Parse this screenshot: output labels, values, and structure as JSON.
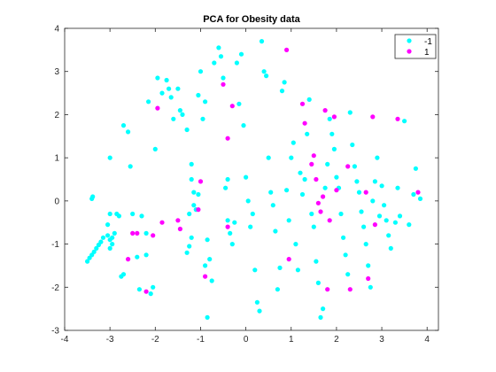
{
  "chart_data": {
    "type": "scatter",
    "title": "PCA for Obesity data",
    "xlabel": "",
    "ylabel": "",
    "xlim": [
      -4,
      4.25
    ],
    "ylim": [
      -3,
      4
    ],
    "xticks": [
      -4,
      -3,
      -2,
      -1,
      0,
      1,
      2,
      3,
      4
    ],
    "yticks": [
      -3,
      -2,
      -1,
      0,
      1,
      2,
      3,
      4
    ],
    "grid": false,
    "legend_position": "top-right",
    "series": [
      {
        "name": "-1",
        "color": "#00FFFF",
        "points": [
          [
            -3.5,
            -1.4
          ],
          [
            -3.45,
            -1.32
          ],
          [
            -3.4,
            -1.25
          ],
          [
            -3.35,
            -1.18
          ],
          [
            -3.3,
            -1.1
          ],
          [
            -3.25,
            -1.02
          ],
          [
            -3.2,
            -0.95
          ],
          [
            -3.15,
            -0.85
          ],
          [
            -3.4,
            0.05
          ],
          [
            -3.38,
            0.1
          ],
          [
            -3.05,
            -0.55
          ],
          [
            -3.0,
            -0.3
          ],
          [
            -3.05,
            -0.8
          ],
          [
            -3.0,
            -0.9
          ],
          [
            -2.95,
            -0.85
          ],
          [
            -2.9,
            -0.75
          ],
          [
            -2.95,
            -1.0
          ],
          [
            -3.0,
            -1.1
          ],
          [
            -2.85,
            -0.3
          ],
          [
            -2.8,
            -0.35
          ],
          [
            -3.0,
            1.0
          ],
          [
            -2.7,
            -1.7
          ],
          [
            -2.75,
            -1.75
          ],
          [
            -2.7,
            1.75
          ],
          [
            -2.6,
            1.6
          ],
          [
            -2.55,
            0.8
          ],
          [
            -2.5,
            -0.3
          ],
          [
            -2.4,
            -1.3
          ],
          [
            -2.35,
            -2.05
          ],
          [
            -2.3,
            -0.35
          ],
          [
            -2.2,
            -0.75
          ],
          [
            -2.2,
            -1.25
          ],
          [
            -2.15,
            2.3
          ],
          [
            -2.1,
            -2.15
          ],
          [
            -2.05,
            -2.0
          ],
          [
            -2.0,
            1.2
          ],
          [
            -1.95,
            2.85
          ],
          [
            -1.85,
            2.5
          ],
          [
            -1.75,
            2.8
          ],
          [
            -1.7,
            2.6
          ],
          [
            -1.65,
            2.4
          ],
          [
            -1.6,
            1.9
          ],
          [
            -1.5,
            2.6
          ],
          [
            -1.45,
            2.1
          ],
          [
            -1.4,
            2.0
          ],
          [
            -1.3,
            1.65
          ],
          [
            -1.3,
            -1.2
          ],
          [
            -1.25,
            -1.05
          ],
          [
            -1.2,
            -0.85
          ],
          [
            -1.25,
            -0.3
          ],
          [
            -1.15,
            -0.1
          ],
          [
            -1.1,
            -0.2
          ],
          [
            -1.05,
            0.15
          ],
          [
            -1.15,
            0.2
          ],
          [
            -1.2,
            0.5
          ],
          [
            -1.2,
            0.85
          ],
          [
            -1.05,
            2.45
          ],
          [
            -1.0,
            3.0
          ],
          [
            -0.95,
            1.9
          ],
          [
            -0.9,
            2.3
          ],
          [
            -0.9,
            -1.5
          ],
          [
            -0.85,
            -2.7
          ],
          [
            -0.85,
            -0.9
          ],
          [
            -0.8,
            -1.35
          ],
          [
            -0.75,
            -1.85
          ],
          [
            -0.7,
            3.2
          ],
          [
            -0.6,
            3.55
          ],
          [
            -0.55,
            3.35
          ],
          [
            -0.5,
            2.85
          ],
          [
            -0.45,
            0.3
          ],
          [
            -0.4,
            0.5
          ],
          [
            -0.4,
            -0.45
          ],
          [
            -0.35,
            -0.75
          ],
          [
            -0.3,
            -1.0
          ],
          [
            -0.25,
            -0.5
          ],
          [
            -0.2,
            3.2
          ],
          [
            -0.15,
            2.25
          ],
          [
            -0.1,
            3.4
          ],
          [
            -0.05,
            1.75
          ],
          [
            0.0,
            0.55
          ],
          [
            0.05,
            0.0
          ],
          [
            0.1,
            -0.6
          ],
          [
            0.15,
            -0.3
          ],
          [
            0.2,
            -1.6
          ],
          [
            0.25,
            -2.35
          ],
          [
            0.3,
            -2.55
          ],
          [
            0.35,
            3.7
          ],
          [
            0.4,
            3.0
          ],
          [
            0.45,
            2.9
          ],
          [
            0.5,
            1.0
          ],
          [
            0.55,
            0.2
          ],
          [
            0.6,
            -0.1
          ],
          [
            0.65,
            -0.7
          ],
          [
            0.7,
            -2.05
          ],
          [
            0.75,
            -1.55
          ],
          [
            0.8,
            2.55
          ],
          [
            0.85,
            2.75
          ],
          [
            0.9,
            0.25
          ],
          [
            0.95,
            -0.45
          ],
          [
            1.0,
            1.0
          ],
          [
            1.05,
            1.35
          ],
          [
            1.1,
            -1.0
          ],
          [
            1.15,
            -1.6
          ],
          [
            1.2,
            0.65
          ],
          [
            1.25,
            0.15
          ],
          [
            1.3,
            0.5
          ],
          [
            1.35,
            1.55
          ],
          [
            1.4,
            2.35
          ],
          [
            1.45,
            -0.3
          ],
          [
            1.5,
            -0.6
          ],
          [
            1.55,
            -1.4
          ],
          [
            1.6,
            -1.9
          ],
          [
            1.65,
            -2.7
          ],
          [
            1.7,
            -2.5
          ],
          [
            1.75,
            0.3
          ],
          [
            1.8,
            0.85
          ],
          [
            1.85,
            1.9
          ],
          [
            1.9,
            1.55
          ],
          [
            1.95,
            1.2
          ],
          [
            2.0,
            0.55
          ],
          [
            2.05,
            0.3
          ],
          [
            2.1,
            -0.3
          ],
          [
            2.15,
            -0.85
          ],
          [
            2.2,
            -1.25
          ],
          [
            2.25,
            -1.7
          ],
          [
            2.3,
            2.05
          ],
          [
            2.35,
            1.3
          ],
          [
            2.4,
            0.8
          ],
          [
            2.45,
            0.45
          ],
          [
            2.5,
            0.2
          ],
          [
            2.55,
            -0.25
          ],
          [
            2.6,
            -0.6
          ],
          [
            2.65,
            -1.0
          ],
          [
            2.7,
            -1.5
          ],
          [
            2.75,
            -2.0
          ],
          [
            2.8,
            0.0
          ],
          [
            2.85,
            0.45
          ],
          [
            2.9,
            1.0
          ],
          [
            2.95,
            -0.35
          ],
          [
            3.0,
            0.35
          ],
          [
            3.05,
            -0.1
          ],
          [
            3.1,
            -0.45
          ],
          [
            3.15,
            -0.8
          ],
          [
            3.2,
            -1.1
          ],
          [
            3.3,
            -0.5
          ],
          [
            3.35,
            0.3
          ],
          [
            3.4,
            -0.35
          ],
          [
            3.5,
            1.85
          ],
          [
            3.6,
            -0.55
          ],
          [
            3.7,
            0.15
          ],
          [
            3.75,
            0.75
          ],
          [
            3.85,
            0.05
          ]
        ]
      },
      {
        "name": "1",
        "color": "#FF00FF",
        "points": [
          [
            -2.6,
            -1.35
          ],
          [
            -2.5,
            -0.75
          ],
          [
            -2.4,
            -0.75
          ],
          [
            -2.2,
            -2.1
          ],
          [
            -2.05,
            -0.8
          ],
          [
            -1.95,
            2.15
          ],
          [
            -1.85,
            -0.5
          ],
          [
            -1.5,
            -0.45
          ],
          [
            -1.45,
            -0.65
          ],
          [
            -1.05,
            -0.2
          ],
          [
            -1.0,
            0.45
          ],
          [
            -0.9,
            -1.75
          ],
          [
            -0.5,
            2.7
          ],
          [
            -0.4,
            1.45
          ],
          [
            -0.3,
            2.2
          ],
          [
            -0.4,
            -0.6
          ],
          [
            0.9,
            3.5
          ],
          [
            0.95,
            -1.35
          ],
          [
            1.25,
            2.25
          ],
          [
            1.3,
            1.8
          ],
          [
            1.45,
            0.85
          ],
          [
            1.5,
            1.05
          ],
          [
            1.55,
            0.5
          ],
          [
            1.6,
            -0.05
          ],
          [
            1.65,
            -0.25
          ],
          [
            1.7,
            0.1
          ],
          [
            1.75,
            2.1
          ],
          [
            1.8,
            -2.05
          ],
          [
            1.85,
            -0.45
          ],
          [
            1.95,
            1.95
          ],
          [
            2.0,
            0.25
          ],
          [
            2.25,
            0.8
          ],
          [
            2.3,
            -2.05
          ],
          [
            2.65,
            0.2
          ],
          [
            2.7,
            -1.8
          ],
          [
            2.8,
            1.95
          ],
          [
            2.85,
            -0.55
          ],
          [
            3.35,
            1.9
          ],
          [
            3.8,
            0.2
          ]
        ]
      }
    ]
  }
}
